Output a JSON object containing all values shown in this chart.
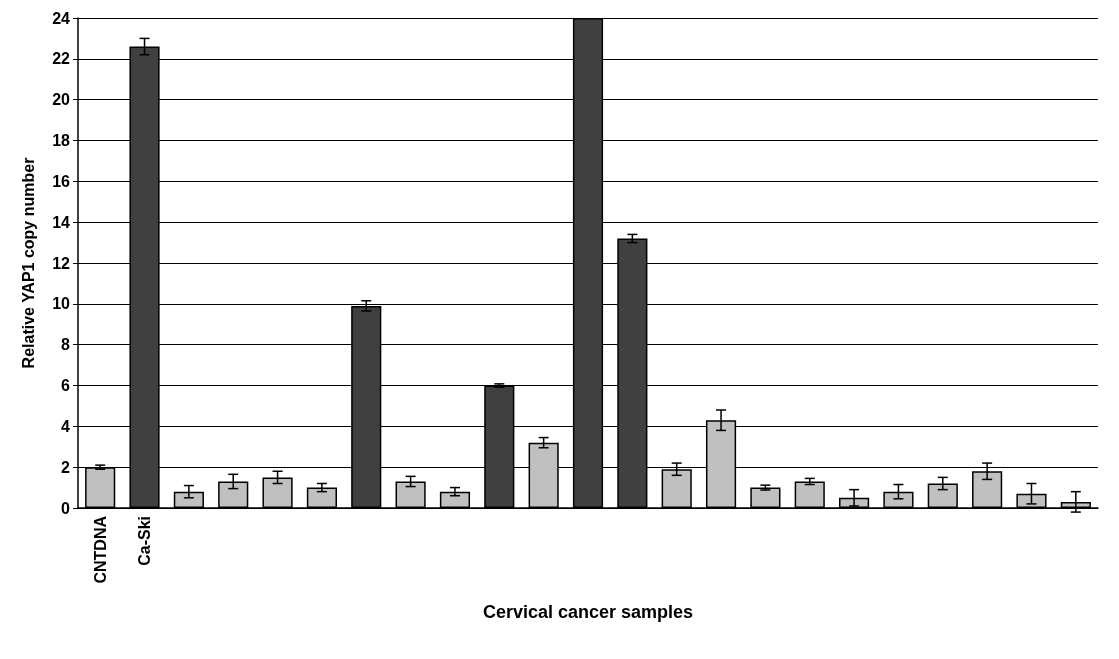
{
  "chart_data": {
    "type": "bar",
    "xlabel": "Cervical cancer samples",
    "ylabel": "Relative YAP1 copy number",
    "categories": [
      "CNTDNA",
      "Ca-Ski",
      null,
      null,
      null,
      null,
      null,
      null,
      null,
      null,
      null,
      null,
      null,
      null,
      null,
      null,
      null,
      null,
      null,
      null,
      null,
      null,
      null
    ],
    "values": [
      2.0,
      22.6,
      0.8,
      1.3,
      1.5,
      1.0,
      9.9,
      1.3,
      0.8,
      6.0,
      3.2,
      24,
      13.2,
      1.9,
      4.3,
      1.0,
      1.3,
      0.5,
      0.8,
      1.2,
      1.8,
      0.7,
      0.3
    ],
    "colors": [
      "#c0c0c0",
      "#404040",
      "#c0c0c0",
      "#c0c0c0",
      "#c0c0c0",
      "#c0c0c0",
      "#404040",
      "#c0c0c0",
      "#c0c0c0",
      "#404040",
      "#c0c0c0",
      "#404040",
      "#404040",
      "#c0c0c0",
      "#c0c0c0",
      "#c0c0c0",
      "#c0c0c0",
      "#c0c0c0",
      "#c0c0c0",
      "#c0c0c0",
      "#c0c0c0",
      "#c0c0c0",
      "#c0c0c0"
    ],
    "errors": [
      0.1,
      0.4,
      0.3,
      0.35,
      0.3,
      0.2,
      0.25,
      0.25,
      0.2,
      0.08,
      0.25,
      null,
      0.2,
      0.3,
      0.5,
      0.12,
      0.15,
      0.4,
      0.35,
      0.3,
      0.4,
      0.5,
      0.5
    ],
    "ylim": [
      0,
      24
    ],
    "yticks": [
      0,
      2,
      4,
      6,
      8,
      10,
      12,
      14,
      16,
      18,
      20,
      22,
      24
    ],
    "grid": "y"
  }
}
